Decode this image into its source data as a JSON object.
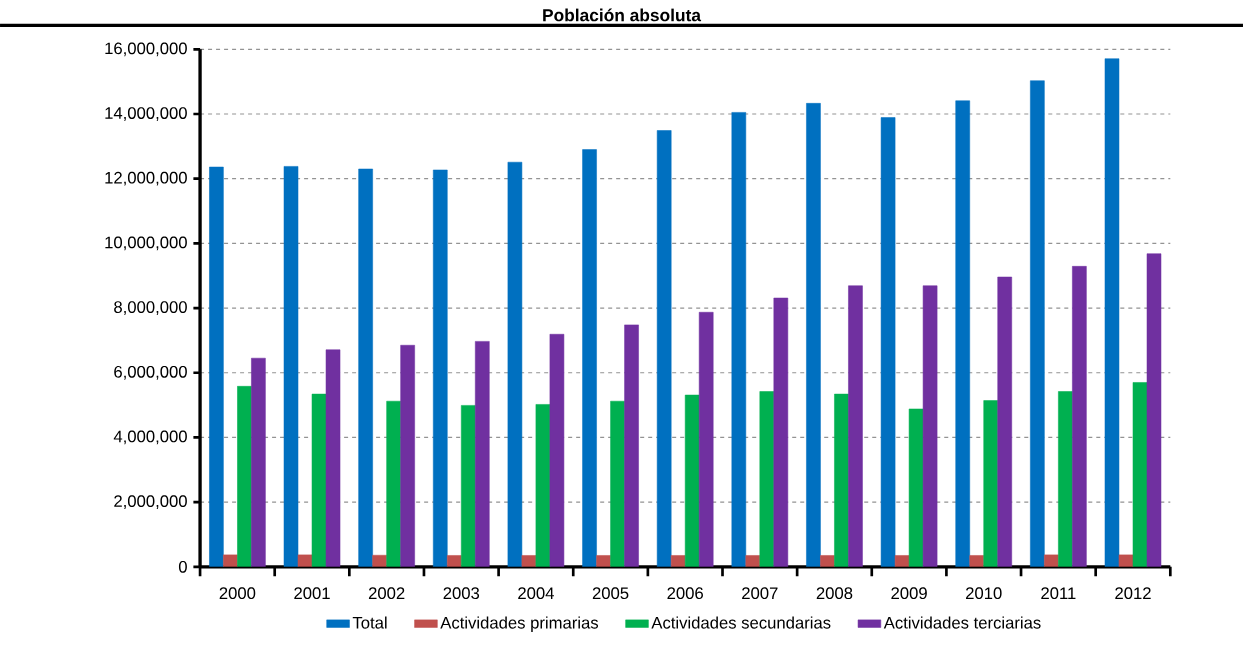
{
  "chart_data": {
    "type": "bar",
    "title": "Población absoluta",
    "categories": [
      "2000",
      "2001",
      "2002",
      "2003",
      "2004",
      "2005",
      "2006",
      "2007",
      "2008",
      "2009",
      "2010",
      "2011",
      "2012"
    ],
    "series": [
      {
        "name": "Total",
        "color": "#0070c0",
        "values": [
          12360000,
          12380000,
          12300000,
          12270000,
          12510000,
          12900000,
          13490000,
          14050000,
          14330000,
          13890000,
          14410000,
          15030000,
          15710000
        ]
      },
      {
        "name": "Actividades primarias",
        "color": "#c0504d",
        "values": [
          370000,
          370000,
          360000,
          350000,
          350000,
          350000,
          350000,
          350000,
          350000,
          350000,
          350000,
          370000,
          370000
        ]
      },
      {
        "name": "Actividades secundarias",
        "color": "#00b050",
        "values": [
          5580000,
          5340000,
          5120000,
          4990000,
          5020000,
          5120000,
          5310000,
          5420000,
          5340000,
          4880000,
          5140000,
          5420000,
          5700000
        ]
      },
      {
        "name": "Actividades terciarias",
        "color": "#7030a0",
        "values": [
          6450000,
          6710000,
          6850000,
          6970000,
          7190000,
          7480000,
          7870000,
          8310000,
          8690000,
          8690000,
          8960000,
          9290000,
          9680000
        ]
      }
    ],
    "ylim": [
      0,
      16000000
    ],
    "yticks": [
      0,
      {
        "value": 2000000,
        "label": "2,000,000"
      },
      {
        "value": 4000000,
        "label": "4,000,000"
      },
      {
        "value": 6000000,
        "label": "6,000,000"
      },
      {
        "value": 8000000,
        "label": "8,000,000"
      },
      {
        "value": 10000000,
        "label": "10,000,000"
      },
      {
        "value": 12000000,
        "label": "12,000,000"
      },
      {
        "value": 14000000,
        "label": "14,000,000"
      },
      {
        "value": 16000000,
        "label": "16,000,000"
      }
    ],
    "grid": "y",
    "legend": "bottom"
  }
}
